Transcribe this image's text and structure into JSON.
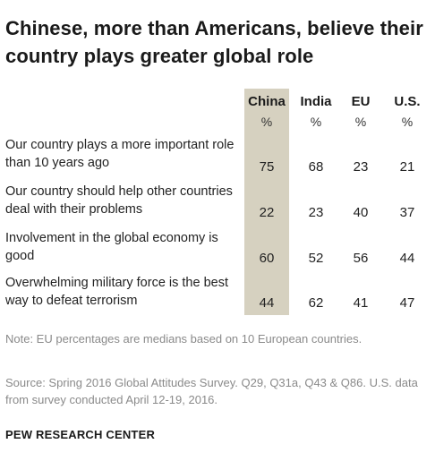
{
  "title": "Chinese, more than Americans, believe their country plays greater global role",
  "colors": {
    "highlight_column": "#d6d1c0",
    "text": "#222222",
    "note": "#8a8a8a"
  },
  "chart_data": {
    "type": "table",
    "title": "Chinese, more than Americans, believe their country plays greater global role",
    "columns": [
      {
        "name": "China",
        "unit": "%",
        "highlighted": true
      },
      {
        "name": "India",
        "unit": "%"
      },
      {
        "name": "EU",
        "unit": "%"
      },
      {
        "name": "U.S.",
        "unit": "%"
      }
    ],
    "rows": [
      {
        "label": "Our country plays a more important role than 10 years ago",
        "values": [
          75,
          68,
          23,
          21
        ]
      },
      {
        "label": "Our country should help other countries deal with their problems",
        "values": [
          22,
          23,
          40,
          37
        ]
      },
      {
        "label": "Involvement in the global economy is good",
        "values": [
          60,
          52,
          56,
          44
        ]
      },
      {
        "label": "Overwhelming military force is the best way to defeat terrorism",
        "values": [
          44,
          62,
          41,
          47
        ]
      }
    ]
  },
  "note": "Note: EU percentages are medians based on 10 European countries.",
  "source": "Source: Spring 2016 Global Attitudes Survey. Q29, Q31a, Q43 & Q86. U.S. data from survey conducted April 12-19, 2016.",
  "brand": "PEW RESEARCH CENTER"
}
